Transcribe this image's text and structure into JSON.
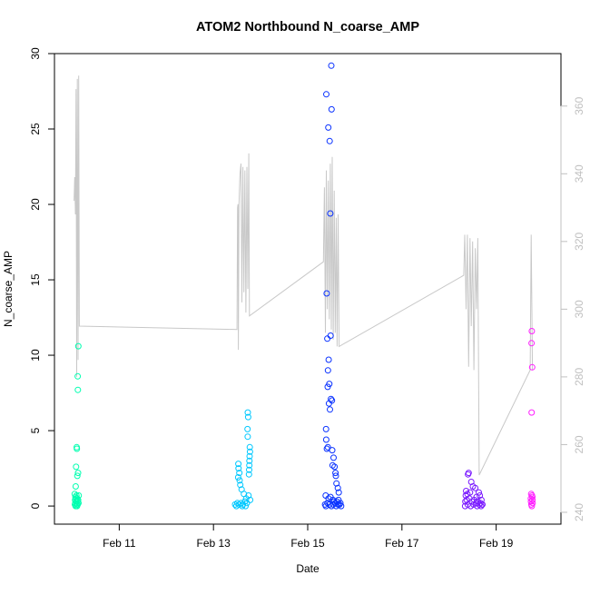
{
  "chart_data": {
    "type": "scatter",
    "title": "ATOM2 Northbound N_coarse_AMP",
    "xlabel": "Date",
    "ylabel": "N_coarse_AMP",
    "xlim": [
      "2022-02-09T15:00",
      "2022-02-20T09:00"
    ],
    "ylim_left": [
      -1.2,
      30.0
    ],
    "ylim_right": [
      236.5,
      375.5
    ],
    "x_ticks": [
      {
        "x": "2022-02-11T00:00",
        "label": "Feb 11"
      },
      {
        "x": "2022-02-13T00:00",
        "label": "Feb 13"
      },
      {
        "x": "2022-02-15T00:00",
        "label": "Feb 15"
      },
      {
        "x": "2022-02-17T00:00",
        "label": "Feb 17"
      },
      {
        "x": "2022-02-19T00:00",
        "label": "Feb 19"
      }
    ],
    "y_ticks_left": [
      0,
      5,
      10,
      15,
      20,
      25,
      30
    ],
    "y_ticks_right": [
      240,
      260,
      280,
      300,
      320,
      340,
      360
    ],
    "grid": false,
    "legend": "none",
    "colors": {
      "axis": "#000000",
      "right_axis": "#c0c0c0",
      "line": "#c8c8c8",
      "day1": "#00ffb0",
      "day2": "#00c8ff",
      "day3": "#0a32ff",
      "day4": "#7a1aff",
      "day5": "#ff20ff"
    },
    "series": [
      {
        "type": "points",
        "color": "#00ffb0",
        "points": [
          [
            "2022-02-10T03:10",
            10.6
          ],
          [
            "2022-02-10T02:50",
            8.6
          ],
          [
            "2022-02-10T02:55",
            7.7
          ],
          [
            "2022-02-10T02:20",
            3.9
          ],
          [
            "2022-02-10T02:25",
            3.8
          ],
          [
            "2022-02-10T02:00",
            2.6
          ],
          [
            "2022-02-10T03:00",
            2.2
          ],
          [
            "2022-02-10T02:40",
            2.0
          ],
          [
            "2022-02-10T01:50",
            1.3
          ],
          [
            "2022-02-10T01:20",
            0.8
          ],
          [
            "2022-02-10T01:40",
            0.6
          ],
          [
            "2022-02-10T02:10",
            0.7
          ],
          [
            "2022-02-10T02:35",
            0.5
          ],
          [
            "2022-02-10T03:20",
            0.7
          ],
          [
            "2022-02-10T01:30",
            0.4
          ],
          [
            "2022-02-10T02:05",
            0.3
          ],
          [
            "2022-02-10T02:45",
            0.3
          ],
          [
            "2022-02-10T03:05",
            0.4
          ],
          [
            "2022-02-10T01:25",
            0.1
          ],
          [
            "2022-02-10T01:45",
            0.0
          ],
          [
            "2022-02-10T02:15",
            0.1
          ],
          [
            "2022-02-10T02:30",
            0.0
          ],
          [
            "2022-02-10T03:15",
            0.2
          ],
          [
            "2022-02-10T01:35",
            0.2
          ],
          [
            "2022-02-10T02:50",
            0.1
          ],
          [
            "2022-02-10T01:55",
            0.5
          ]
        ]
      },
      {
        "type": "points",
        "color": "#00c8ff",
        "points": [
          [
            "2022-02-13T17:30",
            6.2
          ],
          [
            "2022-02-13T17:40",
            5.9
          ],
          [
            "2022-02-13T17:20",
            5.1
          ],
          [
            "2022-02-13T17:25",
            4.6
          ],
          [
            "2022-02-13T18:30",
            3.9
          ],
          [
            "2022-02-13T18:35",
            3.6
          ],
          [
            "2022-02-13T18:25",
            3.3
          ],
          [
            "2022-02-13T18:20",
            3.0
          ],
          [
            "2022-02-13T18:15",
            2.7
          ],
          [
            "2022-02-13T18:10",
            2.4
          ],
          [
            "2022-02-13T18:05",
            2.1
          ],
          [
            "2022-02-13T12:40",
            2.8
          ],
          [
            "2022-02-13T12:45",
            2.5
          ],
          [
            "2022-02-13T13:10",
            2.2
          ],
          [
            "2022-02-13T12:35",
            1.9
          ],
          [
            "2022-02-13T13:20",
            1.7
          ],
          [
            "2022-02-13T13:40",
            1.4
          ],
          [
            "2022-02-13T14:20",
            1.1
          ],
          [
            "2022-02-13T15:30",
            0.8
          ],
          [
            "2022-02-13T16:40",
            0.5
          ],
          [
            "2022-02-13T17:50",
            0.7
          ],
          [
            "2022-02-13T11:00",
            0.1
          ],
          [
            "2022-02-13T11:40",
            0.0
          ],
          [
            "2022-02-13T12:10",
            0.2
          ],
          [
            "2022-02-13T13:00",
            0.1
          ],
          [
            "2022-02-13T14:00",
            0.2
          ],
          [
            "2022-02-13T15:00",
            0.1
          ],
          [
            "2022-02-13T16:00",
            0.3
          ],
          [
            "2022-02-13T17:00",
            0.2
          ],
          [
            "2022-02-13T18:40",
            0.4
          ],
          [
            "2022-02-13T16:20",
            0.0
          ],
          [
            "2022-02-13T14:40",
            0.0
          ]
        ]
      },
      {
        "type": "points",
        "color": "#0a32ff",
        "points": [
          [
            "2022-02-15T12:00",
            29.2
          ],
          [
            "2022-02-15T09:30",
            27.3
          ],
          [
            "2022-02-15T12:10",
            26.3
          ],
          [
            "2022-02-15T10:30",
            25.1
          ],
          [
            "2022-02-15T11:10",
            24.2
          ],
          [
            "2022-02-15T11:30",
            19.4
          ],
          [
            "2022-02-15T09:40",
            14.1
          ],
          [
            "2022-02-15T11:40",
            11.3
          ],
          [
            "2022-02-15T10:00",
            11.1
          ],
          [
            "2022-02-15T10:40",
            9.7
          ],
          [
            "2022-02-15T10:20",
            9.0
          ],
          [
            "2022-02-15T11:00",
            8.1
          ],
          [
            "2022-02-15T10:10",
            7.9
          ],
          [
            "2022-02-15T11:50",
            7.1
          ],
          [
            "2022-02-15T12:20",
            7.0
          ],
          [
            "2022-02-15T11:20",
            6.4
          ],
          [
            "2022-02-15T10:50",
            6.8
          ],
          [
            "2022-02-15T09:20",
            5.1
          ],
          [
            "2022-02-15T09:25",
            4.4
          ],
          [
            "2022-02-15T10:15",
            3.9
          ],
          [
            "2022-02-15T09:45",
            3.8
          ],
          [
            "2022-02-15T12:30",
            3.7
          ],
          [
            "2022-02-15T13:10",
            3.2
          ],
          [
            "2022-02-15T12:40",
            2.7
          ],
          [
            "2022-02-15T13:40",
            2.6
          ],
          [
            "2022-02-15T14:10",
            2.2
          ],
          [
            "2022-02-15T14:20",
            2.0
          ],
          [
            "2022-02-15T14:40",
            1.5
          ],
          [
            "2022-02-15T15:20",
            1.2
          ],
          [
            "2022-02-15T15:50",
            0.9
          ],
          [
            "2022-02-15T09:10",
            0.7
          ],
          [
            "2022-02-15T10:35",
            0.5
          ],
          [
            "2022-02-15T11:35",
            0.6
          ],
          [
            "2022-02-15T12:50",
            0.4
          ],
          [
            "2022-02-15T13:30",
            0.3
          ],
          [
            "2022-02-15T14:00",
            0.2
          ],
          [
            "2022-02-15T14:50",
            0.3
          ],
          [
            "2022-02-15T15:40",
            0.4
          ],
          [
            "2022-02-15T16:10",
            0.1
          ],
          [
            "2022-02-15T08:50",
            0.1
          ],
          [
            "2022-02-15T09:15",
            0.0
          ],
          [
            "2022-02-15T10:05",
            0.2
          ],
          [
            "2022-02-15T11:05",
            0.1
          ],
          [
            "2022-02-15T12:05",
            0.0
          ],
          [
            "2022-02-15T13:00",
            0.1
          ],
          [
            "2022-02-15T14:30",
            0.0
          ],
          [
            "2022-02-15T15:30",
            0.1
          ],
          [
            "2022-02-15T16:40",
            0.2
          ],
          [
            "2022-02-15T17:00",
            0.0
          ]
        ]
      },
      {
        "type": "points",
        "color": "#7a1aff",
        "points": [
          [
            "2022-02-18T10:00",
            2.2
          ],
          [
            "2022-02-18T09:40",
            2.1
          ],
          [
            "2022-02-18T11:20",
            1.6
          ],
          [
            "2022-02-18T12:10",
            1.3
          ],
          [
            "2022-02-18T08:40",
            1.0
          ],
          [
            "2022-02-18T13:20",
            1.2
          ],
          [
            "2022-02-18T15:10",
            0.9
          ],
          [
            "2022-02-18T08:30",
            0.7
          ],
          [
            "2022-02-18T09:20",
            0.8
          ],
          [
            "2022-02-18T10:40",
            0.9
          ],
          [
            "2022-02-18T14:00",
            0.6
          ],
          [
            "2022-02-18T15:40",
            0.7
          ],
          [
            "2022-02-18T16:30",
            0.4
          ],
          [
            "2022-02-18T08:20",
            0.3
          ],
          [
            "2022-02-18T09:00",
            0.4
          ],
          [
            "2022-02-18T10:20",
            0.5
          ],
          [
            "2022-02-18T11:40",
            0.3
          ],
          [
            "2022-02-18T12:50",
            0.4
          ],
          [
            "2022-02-18T13:50",
            0.2
          ],
          [
            "2022-02-18T14:40",
            0.3
          ],
          [
            "2022-02-18T16:00",
            0.2
          ],
          [
            "2022-02-18T16:50",
            0.1
          ],
          [
            "2022-02-18T08:10",
            0.0
          ],
          [
            "2022-02-18T09:30",
            0.1
          ],
          [
            "2022-02-18T11:00",
            0.0
          ],
          [
            "2022-02-18T12:30",
            0.1
          ],
          [
            "2022-02-18T14:20",
            0.0
          ],
          [
            "2022-02-18T15:20",
            0.1
          ],
          [
            "2022-02-18T16:20",
            0.0
          ],
          [
            "2022-02-18T17:00",
            0.1
          ]
        ]
      },
      {
        "type": "points",
        "color": "#ff20ff",
        "points": [
          [
            "2022-02-19T18:10",
            11.6
          ],
          [
            "2022-02-19T18:00",
            10.8
          ],
          [
            "2022-02-19T18:20",
            9.2
          ],
          [
            "2022-02-19T18:05",
            6.2
          ],
          [
            "2022-02-19T17:50",
            0.8
          ],
          [
            "2022-02-19T18:15",
            0.7
          ],
          [
            "2022-02-19T18:25",
            0.6
          ],
          [
            "2022-02-19T17:40",
            0.5
          ],
          [
            "2022-02-19T18:30",
            0.4
          ],
          [
            "2022-02-19T17:45",
            0.3
          ],
          [
            "2022-02-19T18:35",
            0.2
          ],
          [
            "2022-02-19T17:55",
            0.1
          ],
          [
            "2022-02-19T18:10",
            0.0
          ]
        ]
      },
      {
        "type": "line",
        "axis": "right",
        "color": "#c8c8c8",
        "points": [
          [
            "2022-02-10T01:00",
            332
          ],
          [
            "2022-02-10T01:20",
            339
          ],
          [
            "2022-02-10T01:40",
            328
          ],
          [
            "2022-02-10T02:00",
            365
          ],
          [
            "2022-02-10T02:20",
            280
          ],
          [
            "2022-02-10T02:40",
            368
          ],
          [
            "2022-02-10T03:00",
            285
          ],
          [
            "2022-02-10T03:20",
            369
          ],
          [
            "2022-02-10T03:40",
            295
          ],
          [
            "2022-02-13T12:00",
            294
          ],
          [
            "2022-02-13T12:15",
            330
          ],
          [
            "2022-02-13T12:30",
            331
          ],
          [
            "2022-02-13T12:40",
            288
          ],
          [
            "2022-02-13T13:00",
            331
          ],
          [
            "2022-02-13T13:30",
            340
          ],
          [
            "2022-02-13T14:00",
            343
          ],
          [
            "2022-02-13T14:30",
            302
          ],
          [
            "2022-02-13T15:00",
            342
          ],
          [
            "2022-02-13T15:30",
            305
          ],
          [
            "2022-02-13T16:00",
            341
          ],
          [
            "2022-02-13T16:30",
            299
          ],
          [
            "2022-02-13T17:00",
            342
          ],
          [
            "2022-02-13T17:30",
            306
          ],
          [
            "2022-02-13T18:00",
            346
          ],
          [
            "2022-02-13T18:20",
            298
          ],
          [
            "2022-02-15T08:00",
            314
          ],
          [
            "2022-02-15T08:30",
            336
          ],
          [
            "2022-02-15T09:00",
            293
          ],
          [
            "2022-02-15T09:30",
            341
          ],
          [
            "2022-02-15T10:00",
            300
          ],
          [
            "2022-02-15T10:30",
            338
          ],
          [
            "2022-02-15T11:00",
            297
          ],
          [
            "2022-02-15T11:30",
            343
          ],
          [
            "2022-02-15T12:00",
            294
          ],
          [
            "2022-02-15T12:30",
            345
          ],
          [
            "2022-02-15T13:00",
            291
          ],
          [
            "2022-02-15T13:30",
            335
          ],
          [
            "2022-02-15T14:00",
            293
          ],
          [
            "2022-02-15T14:30",
            327
          ],
          [
            "2022-02-15T15:00",
            289
          ],
          [
            "2022-02-15T15:30",
            328
          ],
          [
            "2022-02-15T16:00",
            289
          ],
          [
            "2022-02-18T07:30",
            310
          ],
          [
            "2022-02-18T08:00",
            322
          ],
          [
            "2022-02-18T08:40",
            300
          ],
          [
            "2022-02-18T09:20",
            322
          ],
          [
            "2022-02-18T10:00",
            283
          ],
          [
            "2022-02-18T10:40",
            321
          ],
          [
            "2022-02-18T11:20",
            295
          ],
          [
            "2022-02-18T12:00",
            320
          ],
          [
            "2022-02-18T12:40",
            282
          ],
          [
            "2022-02-18T13:20",
            318
          ],
          [
            "2022-02-18T14:00",
            300
          ],
          [
            "2022-02-18T14:40",
            321
          ],
          [
            "2022-02-18T15:20",
            251
          ],
          [
            "2022-02-19T17:20",
            282
          ],
          [
            "2022-02-19T17:50",
            322
          ],
          [
            "2022-02-19T18:30",
            282
          ]
        ]
      }
    ]
  }
}
